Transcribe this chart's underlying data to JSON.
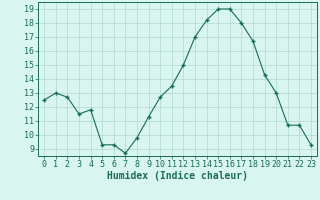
{
  "x": [
    0,
    1,
    2,
    3,
    4,
    5,
    6,
    7,
    8,
    9,
    10,
    11,
    12,
    13,
    14,
    15,
    16,
    17,
    18,
    19,
    20,
    21,
    22,
    23
  ],
  "y": [
    12.5,
    13.0,
    12.7,
    11.5,
    11.8,
    9.3,
    9.3,
    8.7,
    9.8,
    11.3,
    12.7,
    13.5,
    15.0,
    17.0,
    18.2,
    19.0,
    19.0,
    18.0,
    16.7,
    14.3,
    13.0,
    10.7,
    10.7,
    9.3
  ],
  "line_color": "#1a6b5a",
  "marker": "+",
  "marker_size": 3,
  "bg_color": "#d8f5f0",
  "grid_color": "#b0d8d0",
  "xlabel": "Humidex (Indice chaleur)",
  "ylim": [
    8.5,
    19.5
  ],
  "xlim": [
    -0.5,
    23.5
  ],
  "yticks": [
    9,
    10,
    11,
    12,
    13,
    14,
    15,
    16,
    17,
    18,
    19
  ],
  "xticks": [
    0,
    1,
    2,
    3,
    4,
    5,
    6,
    7,
    8,
    9,
    10,
    11,
    12,
    13,
    14,
    15,
    16,
    17,
    18,
    19,
    20,
    21,
    22,
    23
  ],
  "tick_label_fontsize": 6,
  "xlabel_fontsize": 7
}
